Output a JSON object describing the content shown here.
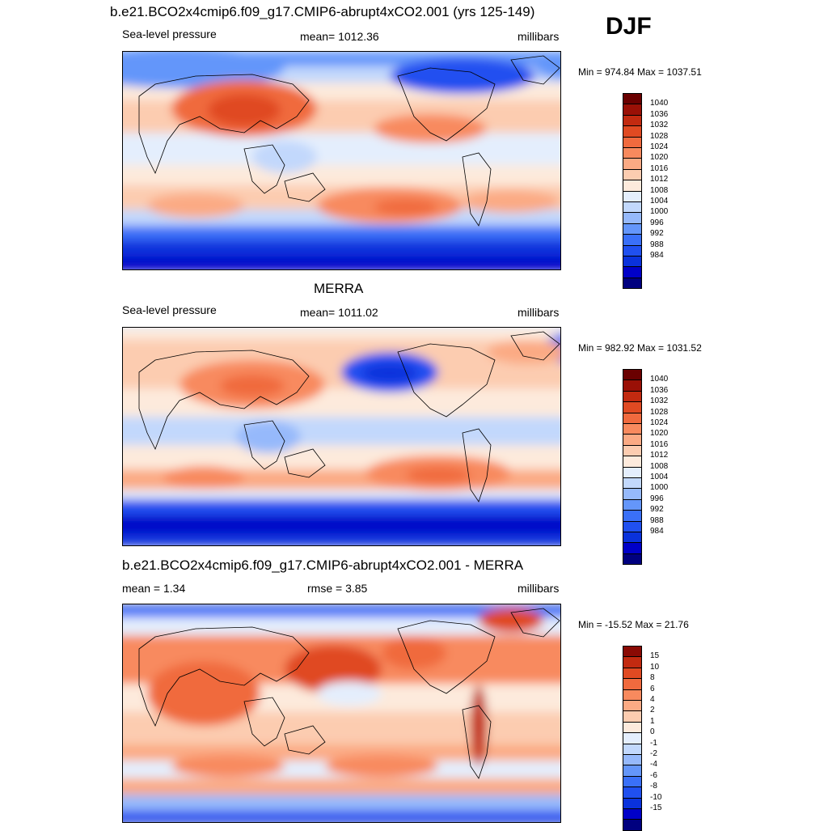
{
  "season": "DJF",
  "colors": {
    "abs_scale": [
      "#00007f",
      "#0000c8",
      "#0a32dc",
      "#2050f0",
      "#3a70f8",
      "#6496fa",
      "#96b9fb",
      "#c2d8fc",
      "#e4eefd",
      "#fdeadc",
      "#fcccb0",
      "#fbaa84",
      "#f88a5e",
      "#f06a3e",
      "#e04a22",
      "#c22a10",
      "#9a1006",
      "#6a0000"
    ],
    "diff_scale": [
      "#00007f",
      "#0000c8",
      "#0a32dc",
      "#2050f0",
      "#3a70f8",
      "#6496fa",
      "#96b9fb",
      "#c2d8fc",
      "#e4eefd",
      "#fdeadc",
      "#fcccb0",
      "#fbaa84",
      "#f88a5e",
      "#f06a3e",
      "#e04a22",
      "#c22a10",
      "#8a0a04"
    ],
    "land_line": "#000000"
  },
  "panels": [
    {
      "title": "b.e21.BCO2x4cmip6.f09_g17.CMIP6-abrupt4xCO2.001 (yrs 125-149)",
      "left_label": "Sea-level pressure",
      "center_label": "mean= 1012.36",
      "right_label": "millibars",
      "minmax": "Min = 974.84 Max = 1037.51",
      "colorbar_labels": [
        "1040",
        "1036",
        "1032",
        "1028",
        "1024",
        "1020",
        "1016",
        "1012",
        "1008",
        "1004",
        "1000",
        "996",
        "992",
        "988",
        "984"
      ]
    },
    {
      "title": "MERRA",
      "left_label": "Sea-level pressure",
      "center_label": "mean= 1011.02",
      "right_label": "millibars",
      "minmax": "Min = 982.92 Max = 1031.52",
      "colorbar_labels": [
        "1040",
        "1036",
        "1032",
        "1028",
        "1024",
        "1020",
        "1016",
        "1012",
        "1008",
        "1004",
        "1000",
        "996",
        "992",
        "988",
        "984"
      ]
    },
    {
      "title": "b.e21.BCO2x4cmip6.f09_g17.CMIP6-abrupt4xCO2.001 - MERRA",
      "left_label": "mean =   1.34",
      "center_label": "rmse =   3.85",
      "right_label": "millibars",
      "minmax": "Min = -15.52 Max =  21.76",
      "colorbar_labels": [
        "15",
        "10",
        "8",
        "6",
        "4",
        "2",
        "1",
        "0",
        "-1",
        "-2",
        "-4",
        "-6",
        "-8",
        "-10",
        "-15"
      ]
    }
  ],
  "chart_data": [
    {
      "type": "heatmap",
      "title": "b.e21.BCO2x4cmip6.f09_g17.CMIP6-abrupt4xCO2.001 (yrs 125-149)",
      "variable": "Sea-level pressure",
      "units": "millibars",
      "mean": 1012.36,
      "min": 974.84,
      "max": 1037.51,
      "levels": [
        984,
        988,
        992,
        996,
        1000,
        1004,
        1008,
        1012,
        1016,
        1020,
        1024,
        1028,
        1032,
        1036,
        1040
      ],
      "legend": "right"
    },
    {
      "type": "heatmap",
      "title": "MERRA",
      "variable": "Sea-level pressure",
      "units": "millibars",
      "mean": 1011.02,
      "min": 982.92,
      "max": 1031.52,
      "levels": [
        984,
        988,
        992,
        996,
        1000,
        1004,
        1008,
        1012,
        1016,
        1020,
        1024,
        1028,
        1032,
        1036,
        1040
      ],
      "legend": "right"
    },
    {
      "type": "heatmap",
      "title": "b.e21.BCO2x4cmip6.f09_g17.CMIP6-abrupt4xCO2.001 - MERRA",
      "units": "millibars",
      "mean": 1.34,
      "rmse": 3.85,
      "min": -15.52,
      "max": 21.76,
      "levels": [
        -15,
        -10,
        -8,
        -6,
        -4,
        -2,
        -1,
        0,
        1,
        2,
        4,
        6,
        8,
        10,
        15
      ],
      "legend": "right"
    }
  ]
}
